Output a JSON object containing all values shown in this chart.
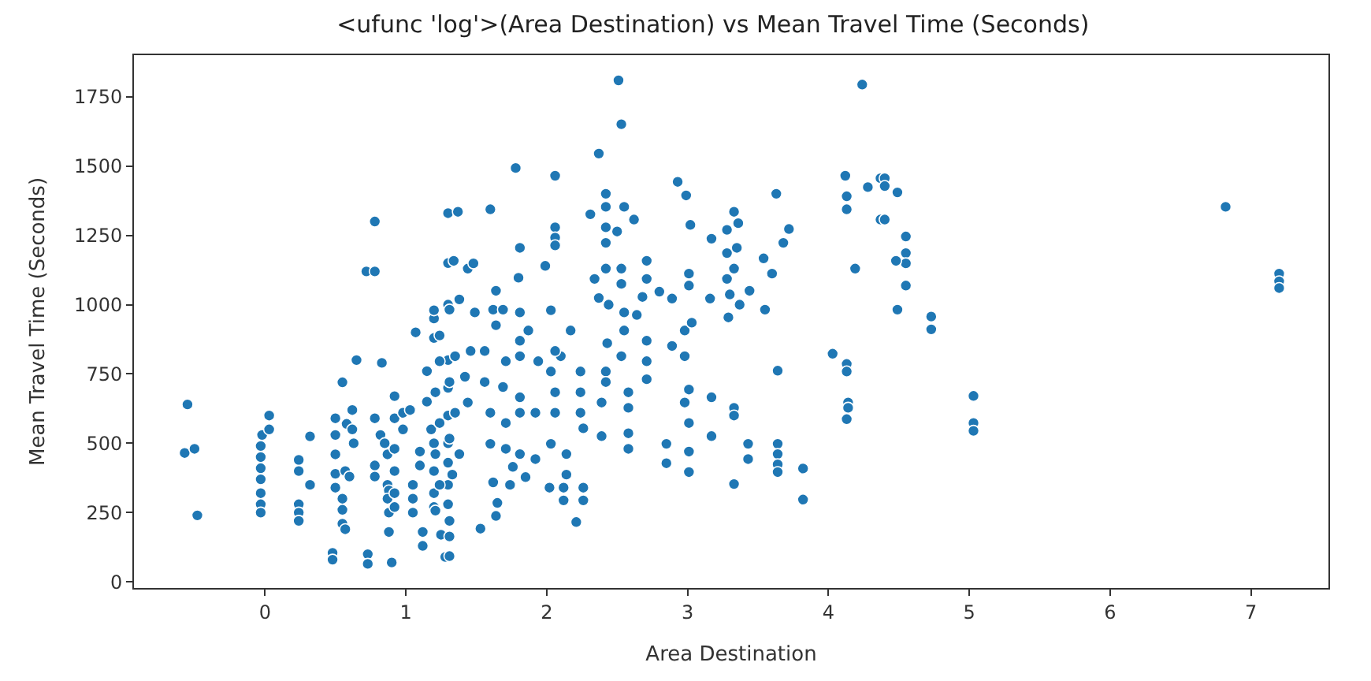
{
  "chart_data": {
    "type": "scatter",
    "title": "<ufunc 'log'>(Area Destination) vs Mean Travel Time (Seconds)",
    "xlabel": "Area Destination",
    "ylabel": "Mean Travel Time (Seconds)",
    "xlim": [
      -0.93,
      7.55
    ],
    "xticks": [
      0,
      1,
      2,
      3,
      4,
      5,
      6,
      7
    ],
    "ylim": [
      -22,
      1900
    ],
    "yticks": [
      0,
      250,
      500,
      750,
      1000,
      1250,
      1500,
      1750
    ],
    "marker": "circle",
    "series": [
      {
        "color": "#1f77b4",
        "x": [
          -0.55,
          -0.57,
          -0.5,
          -0.48,
          -0.02,
          -0.03,
          -0.03,
          -0.03,
          -0.03,
          -0.03,
          -0.03,
          -0.03,
          0.03,
          0.03,
          0.24,
          0.24,
          0.24,
          0.24,
          0.24,
          0.32,
          0.32,
          0.48,
          0.48,
          0.5,
          0.5,
          0.5,
          0.5,
          0.5,
          0.55,
          0.57,
          0.55,
          0.55,
          0.55,
          0.58,
          0.6,
          0.62,
          0.63,
          0.65,
          0.62,
          0.57,
          0.72,
          0.78,
          0.78,
          0.73,
          0.73,
          0.78,
          0.78,
          0.78,
          0.83,
          0.82,
          0.85,
          0.87,
          0.87,
          0.88,
          0.87,
          0.88,
          0.88,
          0.9,
          0.92,
          0.92,
          0.92,
          0.92,
          0.92,
          0.92,
          0.98,
          0.98,
          1.03,
          1.05,
          1.05,
          1.05,
          1.07,
          1.1,
          1.1,
          1.12,
          1.12,
          1.15,
          1.15,
          1.2,
          1.2,
          1.2,
          1.18,
          1.2,
          1.2,
          1.2,
          1.2,
          1.25,
          1.28,
          1.3,
          1.3,
          1.3,
          1.3,
          1.3,
          1.3,
          1.3,
          1.3,
          1.3,
          1.3,
          1.37,
          1.6,
          1.34,
          1.44,
          1.48,
          1.78,
          1.81,
          1.8,
          2.06,
          2.06,
          2.06,
          2.06,
          1.99,
          2.03,
          2.51,
          2.53,
          2.37,
          2.31,
          2.42,
          2.42,
          2.42,
          2.55,
          2.62,
          2.5,
          2.42,
          2.34,
          2.42,
          2.53,
          2.53,
          2.37,
          2.44,
          2.55,
          2.64,
          2.71,
          2.71,
          2.68,
          2.8,
          2.89,
          2.93,
          2.99,
          3.02,
          3.01,
          3.01,
          2.98,
          3.03,
          3.17,
          3.16,
          3.28,
          3.33,
          3.36,
          3.28,
          3.35,
          3.33,
          3.28,
          3.3,
          3.37,
          3.44,
          3.29,
          3.54,
          3.55,
          3.6,
          3.63,
          3.68,
          3.72,
          4.12,
          4.13,
          4.13,
          4.19,
          4.24,
          4.28,
          4.37,
          4.37,
          1.24,
          1.31,
          1.38,
          1.49,
          1.24,
          1.35,
          1.46,
          1.21,
          1.31,
          1.42,
          1.24,
          1.35,
          1.44,
          1.21,
          1.31,
          1.38,
          1.24,
          1.33,
          1.21,
          1.31,
          1.31,
          1.31,
          1.53,
          1.64,
          1.65,
          1.62,
          1.74,
          1.76,
          1.85,
          1.6,
          1.71,
          1.81,
          1.92,
          1.6,
          1.71,
          1.81,
          1.92,
          1.56,
          1.69,
          1.81,
          1.56,
          1.71,
          1.81,
          1.94,
          1.64,
          1.81,
          1.62,
          1.69,
          1.81,
          1.64,
          1.87,
          2.03,
          2.06,
          2.06,
          2.03,
          2.1,
          2.17,
          2.06,
          2.14,
          2.14,
          2.12,
          2.02,
          2.12,
          2.26,
          2.26,
          2.21,
          2.24,
          2.24,
          2.24,
          2.26,
          2.39,
          2.39,
          2.42,
          2.43,
          2.42,
          2.53,
          2.55,
          2.58,
          2.58,
          2.58,
          2.58,
          2.71,
          2.71,
          2.71,
          2.85,
          2.85,
          2.89,
          2.98,
          3.01,
          2.98,
          3.01,
          3.01,
          3.01,
          3.17,
          3.17,
          3.33,
          3.33,
          3.33,
          3.43,
          3.43,
          3.64,
          3.64,
          3.64,
          3.64,
          3.64,
          3.82,
          3.82,
          4.03,
          4.13,
          4.13,
          4.14,
          4.14,
          4.13,
          4.4,
          4.4,
          4.49,
          4.4,
          4.55,
          4.55,
          4.55,
          4.48,
          4.55,
          4.49,
          4.73,
          4.73,
          5.03,
          5.03,
          5.03,
          6.82,
          7.2,
          7.2,
          7.2
        ],
        "values": [
          640,
          465,
          480,
          240,
          530,
          490,
          450,
          410,
          370,
          320,
          280,
          250,
          600,
          550,
          440,
          400,
          280,
          250,
          220,
          525,
          350,
          105,
          80,
          590,
          530,
          460,
          390,
          340,
          720,
          400,
          300,
          260,
          210,
          570,
          380,
          550,
          500,
          800,
          620,
          190,
          1120,
          1120,
          1300,
          100,
          65,
          590,
          420,
          380,
          790,
          530,
          500,
          460,
          350,
          330,
          300,
          250,
          180,
          70,
          670,
          590,
          480,
          400,
          320,
          270,
          550,
          610,
          620,
          350,
          300,
          250,
          900,
          420,
          470,
          130,
          180,
          760,
          650,
          950,
          980,
          880,
          550,
          500,
          400,
          320,
          270,
          170,
          90,
          1330,
          1150,
          1000,
          800,
          700,
          600,
          500,
          430,
          350,
          280,
          1335,
          1344,
          1158,
          1130,
          1149,
          1493,
          1205,
          1097,
          1465,
          1279,
          1242,
          1214,
          1140,
          980,
          1809,
          1651,
          1545,
          1326,
          1400,
          1353,
          1279,
          1353,
          1307,
          1264,
          1223,
          1093,
          1130,
          1130,
          1075,
          1024,
          1000,
          972,
          963,
          1158,
          1093,
          1028,
          1047,
          1022,
          1443,
          1394,
          1288,
          1112,
          1069,
          907,
          935,
          1238,
          1022,
          1270,
          1335,
          1294,
          1186,
          1205,
          1130,
          1093,
          1037,
          1000,
          1050,
          954,
          1167,
          982,
          1112,
          1400,
          1223,
          1273,
          1465,
          1391,
          1344,
          1130,
          1794,
          1424,
          1456,
          1307,
          889,
          982,
          1019,
          972,
          796,
          814,
          833,
          684,
          721,
          740,
          573,
          610,
          647,
          461,
          517,
          461,
          350,
          387,
          257,
          220,
          164,
          93,
          192,
          238,
          285,
          359,
          350,
          415,
          378,
          498,
          480,
          461,
          443,
          610,
          573,
          610,
          610,
          721,
          703,
          666,
          833,
          796,
          814,
          796,
          926,
          870,
          982,
          982,
          972,
          1050,
          907,
          498,
          610,
          684,
          759,
          814,
          907,
          833,
          461,
          387,
          340,
          340,
          294,
          340,
          294,
          216,
          759,
          684,
          610,
          554,
          647,
          526,
          759,
          861,
          721,
          814,
          907,
          684,
          628,
          536,
          480,
          796,
          731,
          870,
          498,
          428,
          851,
          814,
          694,
          647,
          573,
          470,
          396,
          666,
          526,
          628,
          600,
          353,
          498,
          443,
          762,
          498,
          461,
          424,
          396,
          409,
          297,
          823,
          786,
          759,
          647,
          628,
          587,
          1456,
          1428,
          1405,
          1307,
          1246,
          1186,
          1149,
          1158,
          1069,
          982,
          957,
          911,
          671,
          573,
          545,
          1353,
          1112,
          1084,
          1060
        ]
      }
    ]
  }
}
